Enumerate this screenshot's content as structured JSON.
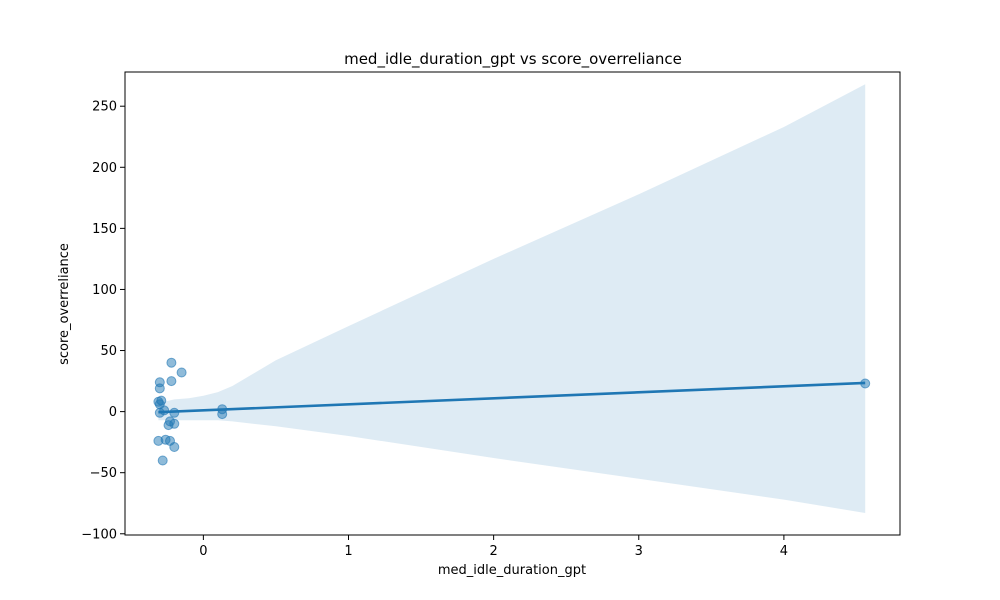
{
  "chart_data": {
    "type": "scatter",
    "title": "med_idle_duration_gpt vs score_overreliance",
    "xlabel": "med_idle_duration_gpt",
    "ylabel": "score_overreliance",
    "xlim": [
      -0.54,
      4.8
    ],
    "ylim": [
      -101,
      278
    ],
    "x_ticks": [
      0,
      1,
      2,
      3,
      4
    ],
    "y_ticks": [
      -100,
      -50,
      0,
      50,
      100,
      150,
      200,
      250
    ],
    "grid": false,
    "colors": {
      "points": "#1f77b4",
      "line": "#1f77b4",
      "band": "#1f77b4"
    },
    "points": [
      {
        "x": -0.31,
        "y": 8
      },
      {
        "x": -0.3,
        "y": -1
      },
      {
        "x": -0.3,
        "y": 24
      },
      {
        "x": -0.3,
        "y": 19
      },
      {
        "x": -0.3,
        "y": 6
      },
      {
        "x": -0.29,
        "y": 9
      },
      {
        "x": -0.31,
        "y": -24
      },
      {
        "x": -0.28,
        "y": -40
      },
      {
        "x": -0.27,
        "y": 1
      },
      {
        "x": -0.26,
        "y": -23
      },
      {
        "x": -0.24,
        "y": -11
      },
      {
        "x": -0.23,
        "y": -24
      },
      {
        "x": -0.23,
        "y": -8
      },
      {
        "x": -0.22,
        "y": 40
      },
      {
        "x": -0.22,
        "y": 25
      },
      {
        "x": -0.2,
        "y": -29
      },
      {
        "x": -0.2,
        "y": -10
      },
      {
        "x": -0.2,
        "y": -1
      },
      {
        "x": -0.15,
        "y": 32
      },
      {
        "x": 0.13,
        "y": 2
      },
      {
        "x": 0.13,
        "y": -2
      },
      {
        "x": 4.56,
        "y": 23
      }
    ],
    "regression": {
      "x": [
        -0.31,
        4.56
      ],
      "y": [
        -0.5,
        23.5
      ]
    },
    "confidence_band": {
      "x": [
        -0.31,
        -0.2,
        -0.1,
        0.0,
        0.1,
        0.2,
        0.5,
        1.0,
        2.0,
        3.0,
        4.0,
        4.56
      ],
      "upper": [
        7,
        10,
        11,
        13,
        16,
        21,
        42,
        70,
        125,
        178,
        233,
        268
      ],
      "lower": [
        -7,
        -7,
        -7,
        -7,
        -7,
        -8,
        -12,
        -20,
        -38,
        -55,
        -72,
        -83
      ]
    }
  }
}
